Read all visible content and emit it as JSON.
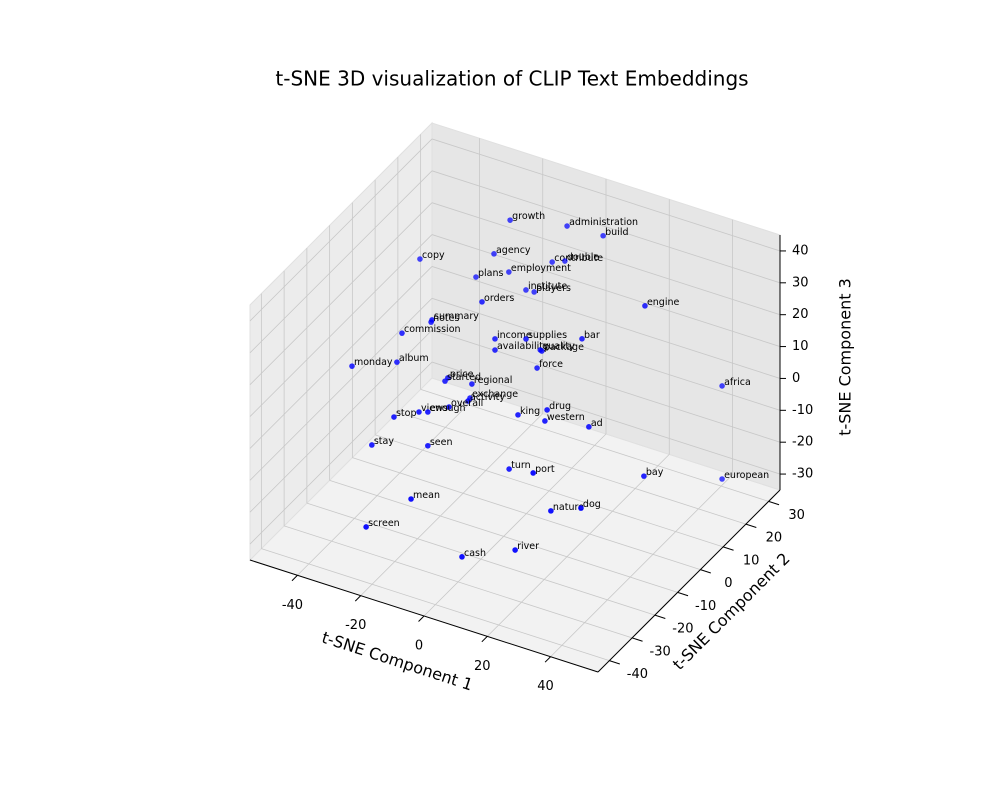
{
  "chart_data": {
    "type": "scatter3d",
    "title": "t-SNE 3D visualization of CLIP Text Embeddings",
    "xlabel": "t-SNE Component 1",
    "ylabel": "t-SNE Component 2",
    "zlabel": "t-SNE Component 3",
    "xlim": [
      -55,
      55
    ],
    "ylim": [
      -45,
      35
    ],
    "zlim": [
      -35,
      45
    ],
    "xticks": [
      -40,
      -20,
      0,
      20,
      40
    ],
    "yticks": [
      -40,
      -30,
      -20,
      -10,
      0,
      10,
      20,
      30
    ],
    "zticks": [
      -30,
      -20,
      -10,
      0,
      10,
      20,
      30,
      40
    ],
    "grid": true,
    "color": "#0000ff",
    "labels": [
      "growth",
      "administration",
      "build",
      "agency",
      "copy",
      "contribute",
      "double",
      "plans",
      "employment",
      "institute",
      "players",
      "orders",
      "engine",
      "summary",
      "notes",
      "commission",
      "income",
      "supplies",
      "bar",
      "availability",
      "quality",
      "package",
      "monday",
      "album",
      "force",
      "price",
      "started",
      "regional",
      "africa",
      "exchange",
      "activity",
      "overall",
      "views",
      "enough",
      "stop",
      "king",
      "drug",
      "western",
      "ad",
      "stay",
      "seen",
      "turn",
      "port",
      "bay",
      "european",
      "mean",
      "nature",
      "dog",
      "screen",
      "cash",
      "river"
    ],
    "x": [
      -18.8,
      -0.8,
      10.6,
      -23.9,
      -47.3,
      -5.5,
      -1.5,
      -29.6,
      -19.2,
      -13.8,
      -11.2,
      -13.3,
      38.2,
      -29.1,
      -29.4,
      -38.6,
      -9.2,
      0.6,
      18.3,
      -9.2,
      5.1,
      5.6,
      -54.4,
      -40.2,
      4.1,
      -24.1,
      -25.0,
      -16.5,
      48.2,
      -17.1,
      -9.1,
      -15.1,
      -24.6,
      -21.8,
      -32.5,
      6.7,
      15.9,
      15.2,
      29.1,
      -39.5,
      -21.8,
      3.9,
      23.0,
      46.5,
      48.2,
      -15.6,
      28.6,
      38.1,
      -29.8,
      0.5,
      17.3
    ],
    "y": [
      19,
      19,
      19,
      19,
      19,
      19,
      19,
      19,
      19,
      19,
      19,
      -1,
      -1,
      -1,
      -1,
      -1,
      -1,
      -1,
      -1,
      -1,
      -1,
      -1,
      -1,
      -1,
      -1,
      -1,
      -1,
      -1,
      19,
      -1,
      -13,
      -13,
      -13,
      -13,
      -13,
      -13,
      -13,
      -13,
      -13,
      -13,
      -13,
      -13,
      -29,
      -13,
      19,
      -29,
      -29,
      -29,
      -29,
      -29,
      -29
    ],
    "z": [
      37.5,
      41.4,
      42.0,
      25.3,
      16.2,
      28.6,
      30.2,
      16.2,
      21.1,
      17.2,
      17.4,
      27.9,
      43.1,
      17.2,
      16.4,
      10.0,
      17.6,
      20.7,
      26.4,
      14.1,
      18.7,
      18.5,
      -5.4,
      0.4,
      12.7,
      0.6,
      -0.7,
      1.1,
      6.9,
      -3.5,
      6.7,
      2.9,
      -1.7,
      -0.8,
      -5.8,
      7.4,
      11.9,
      8.2,
      10.8,
      -16.8,
      -11.4,
      -10.5,
      5.8,
      0.9,
      -22.3,
      -14.7,
      -4.3,
      -0.4,
      -28.0,
      -27.7,
      -20.2
    ]
  }
}
